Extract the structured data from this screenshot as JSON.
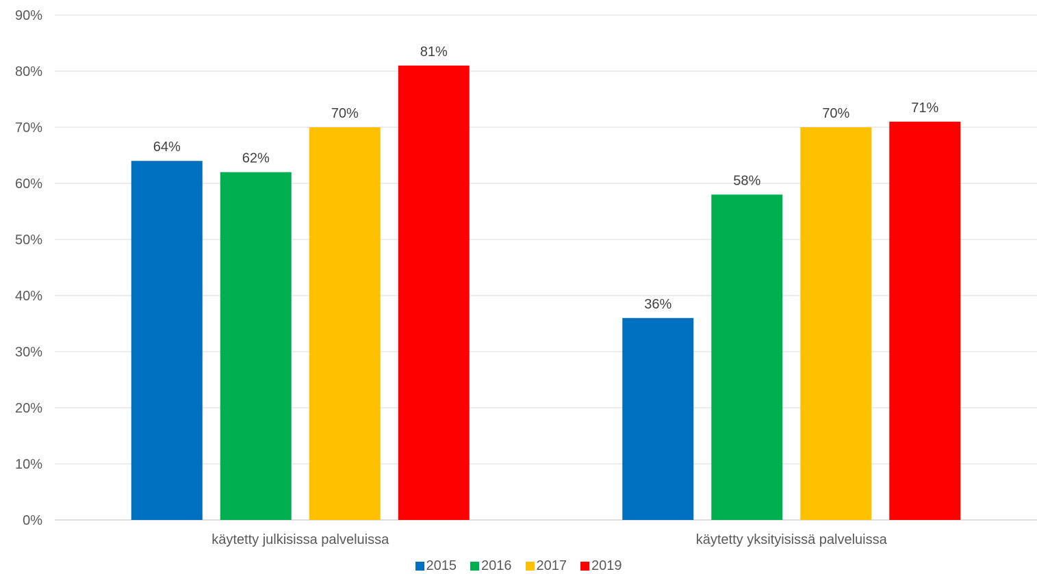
{
  "chart_data": {
    "type": "bar",
    "title": "",
    "xlabel": "",
    "ylabel": "",
    "categories": [
      "käytetty julkisissa palveluissa",
      "käytetty yksityisissä palveluissa"
    ],
    "series": [
      {
        "name": "2015",
        "color": "#0070C0",
        "values": [
          64,
          36
        ],
        "labels": [
          "64%",
          "36%"
        ]
      },
      {
        "name": "2016",
        "color": "#00B050",
        "values": [
          62,
          58
        ],
        "labels": [
          "62%",
          "58%"
        ]
      },
      {
        "name": "2017",
        "color": "#FFC000",
        "values": [
          70,
          70
        ],
        "labels": [
          "70%",
          "70%"
        ]
      },
      {
        "name": "2019",
        "color": "#FF0000",
        "values": [
          81,
          71
        ],
        "labels": [
          "81%",
          "71%"
        ]
      }
    ],
    "ylim": [
      0,
      90
    ],
    "yticks": [
      0,
      10,
      20,
      30,
      40,
      50,
      60,
      70,
      80,
      90
    ],
    "ytick_labels": [
      "0%",
      "10%",
      "20%",
      "30%",
      "40%",
      "50%",
      "60%",
      "70%",
      "80%",
      "90%"
    ],
    "grid": true,
    "legend_position": "bottom"
  }
}
